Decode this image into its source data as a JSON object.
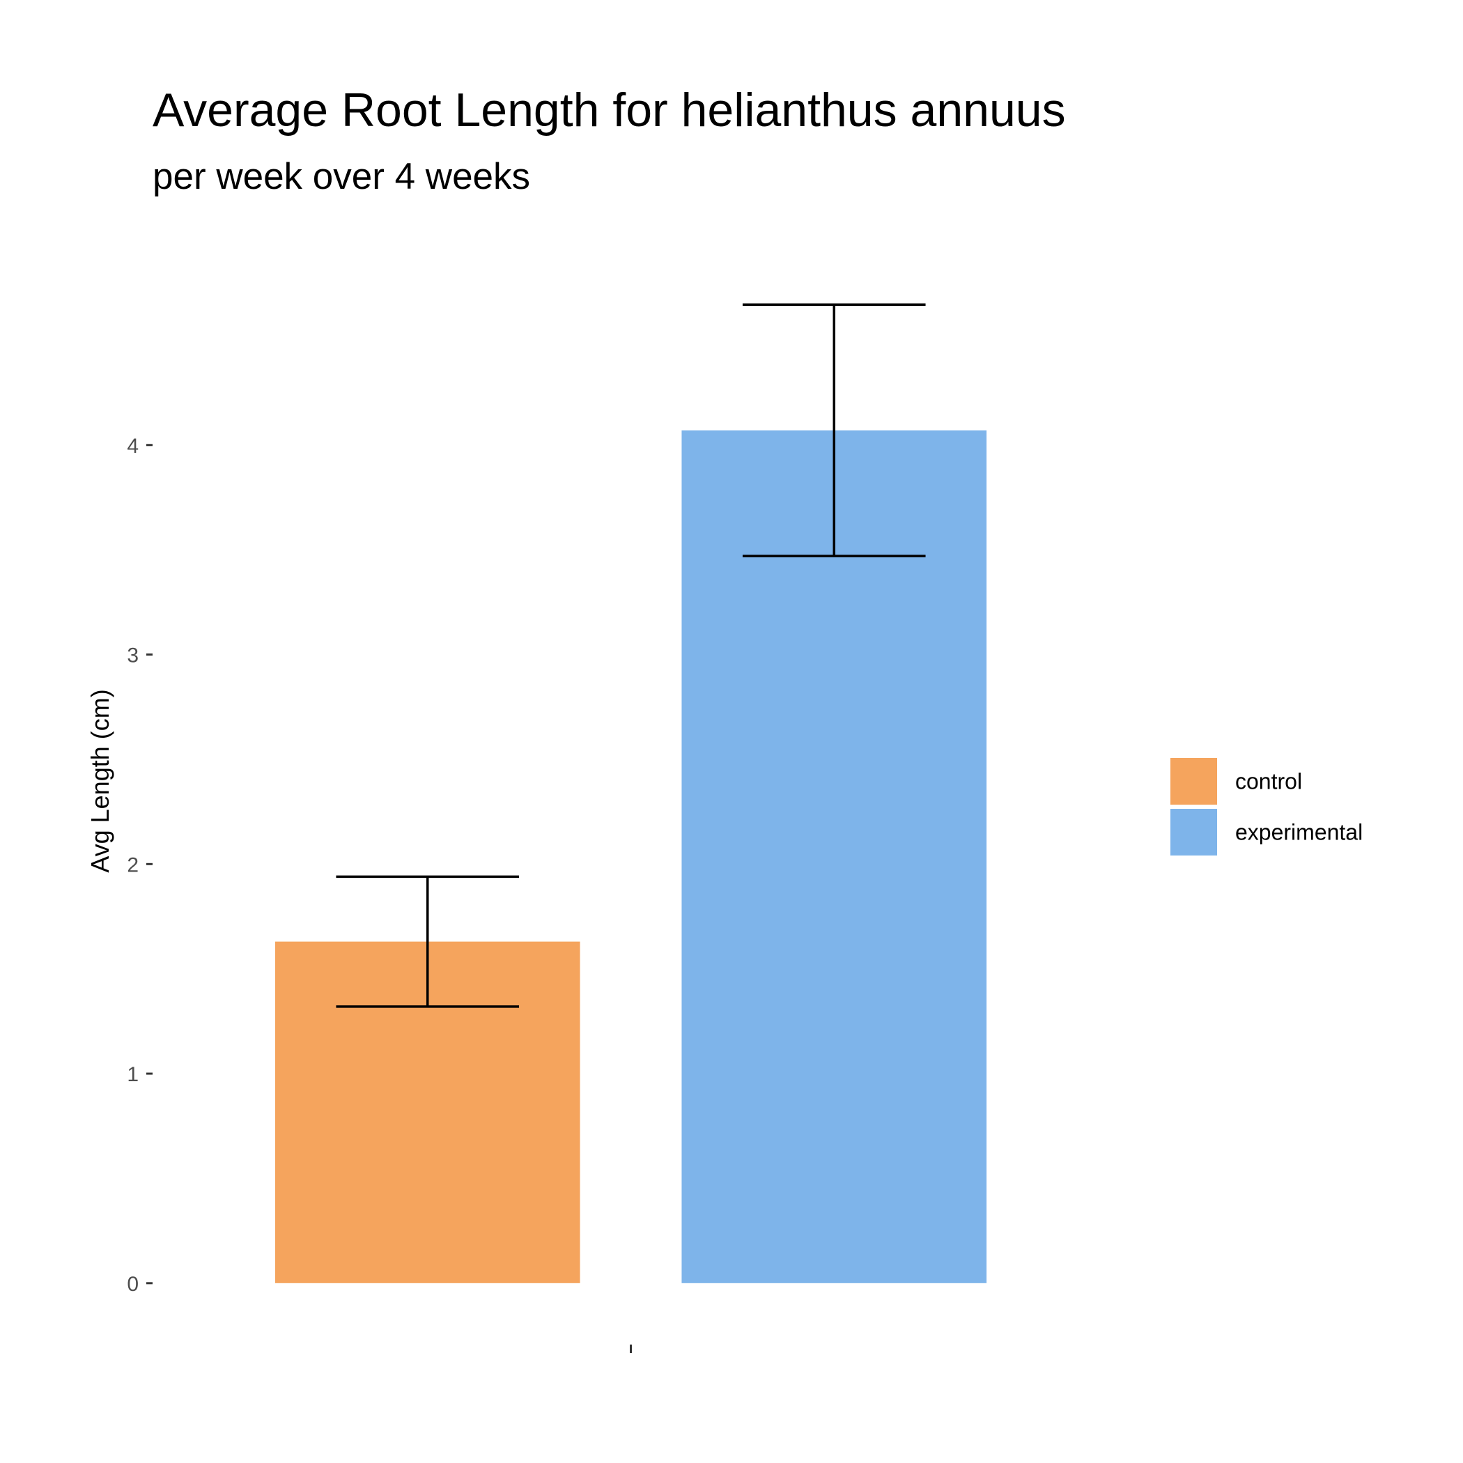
{
  "chart_data": {
    "type": "bar",
    "title": "Average Root Length for helianthus annuus",
    "subtitle": "per week over 4 weeks",
    "xlabel": "",
    "ylabel": "Avg Length (cm)",
    "categories": [
      ""
    ],
    "series": [
      {
        "name": "control",
        "values": [
          1.63
        ],
        "error_low": [
          1.32
        ],
        "error_high": [
          1.94
        ],
        "color": "#F5A45D"
      },
      {
        "name": "experimental",
        "values": [
          4.07
        ],
        "error_low": [
          3.47
        ],
        "error_high": [
          4.67
        ],
        "color": "#7EB4EA"
      }
    ],
    "ylim": [
      -0.2,
      5.0
    ],
    "yticks": [
      0,
      1,
      2,
      3,
      4
    ],
    "grid": false,
    "legend": {
      "position": "right"
    }
  }
}
